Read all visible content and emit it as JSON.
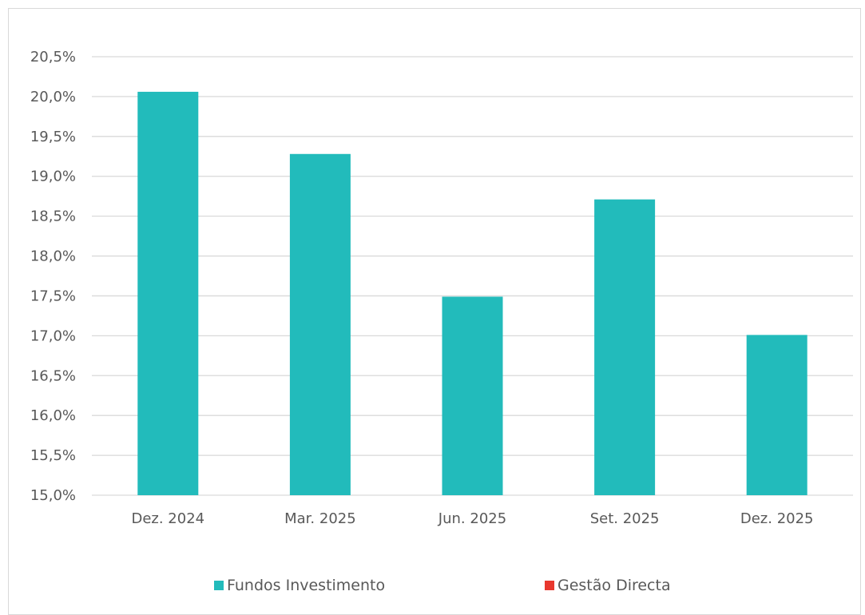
{
  "chart_data": {
    "type": "bar",
    "categories": [
      "Dez. 2024",
      "Mar. 2025",
      "Jun. 2025",
      "Set. 2025",
      "Dez. 2025"
    ],
    "series": [
      {
        "name": "Fundos Investimento",
        "color": "#22bbbb",
        "values": [
          20.06,
          19.28,
          17.49,
          18.71,
          17.01
        ]
      },
      {
        "name": "Gestão Directa",
        "color": "#e8382e",
        "values": [
          null,
          null,
          null,
          null,
          null
        ]
      }
    ],
    "ylim": [
      15.0,
      20.5
    ],
    "yticks": [
      "15,0%",
      "15,5%",
      "16,0%",
      "16,5%",
      "17,0%",
      "17,5%",
      "18,0%",
      "18,5%",
      "19,0%",
      "19,5%",
      "20,0%",
      "20,5%"
    ],
    "ytick_values": [
      15.0,
      15.5,
      16.0,
      16.5,
      17.0,
      17.5,
      18.0,
      18.5,
      19.0,
      19.5,
      20.0,
      20.5
    ],
    "grid": true,
    "legend_position": "bottom",
    "title": "",
    "xlabel": "",
    "ylabel": ""
  }
}
